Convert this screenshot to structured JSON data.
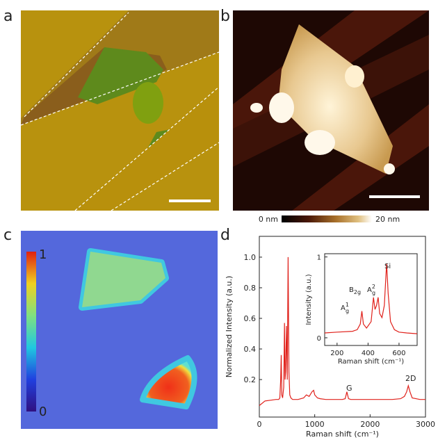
{
  "panel_labels": [
    "a",
    "b",
    "c",
    "d"
  ],
  "afm_colorbar": {
    "min_label": "0 nm",
    "max_label": "20 nm"
  },
  "map_colorbar": {
    "max_label": "1",
    "min_label": "0"
  },
  "chart_data": [
    {
      "type": "line",
      "xlabel": "Raman shift (cm⁻¹)",
      "ylabel": "Normalized Intensity (a.u.)",
      "xlim": [
        0,
        3000
      ],
      "xticks": [
        0,
        1000,
        2000,
        3000
      ],
      "ylim": [
        -0.045,
        1.136
      ],
      "yticks": [
        0.2,
        0.4,
        0.6,
        0.8,
        {
          "value": 1,
          "label": "1.0"
        }
      ],
      "annotations": [
        "G",
        "2D"
      ],
      "series": [
        {
          "color": "#e0201a",
          "x": [
            0,
            100,
            200,
            300,
            350,
            370,
            385,
            395,
            405,
            420,
            440,
            455,
            465,
            475,
            490,
            505,
            520,
            535,
            550,
            570,
            600,
            700,
            800,
            850,
            900,
            950,
            980,
            1000,
            1050,
            1100,
            1200,
            1300,
            1400,
            1500,
            1550,
            1580,
            1610,
            1650,
            1800,
            2000,
            2200,
            2400,
            2550,
            2620,
            2660,
            2690,
            2720,
            2760,
            2900,
            3000
          ],
          "values": [
            0.03,
            0.06,
            0.065,
            0.07,
            0.07,
            0.08,
            0.2,
            0.36,
            0.1,
            0.08,
            0.15,
            0.57,
            0.2,
            0.25,
            0.55,
            0.2,
            1.0,
            0.25,
            0.1,
            0.08,
            0.07,
            0.07,
            0.08,
            0.1,
            0.09,
            0.12,
            0.13,
            0.1,
            0.08,
            0.075,
            0.07,
            0.07,
            0.07,
            0.07,
            0.075,
            0.12,
            0.075,
            0.07,
            0.07,
            0.07,
            0.07,
            0.07,
            0.075,
            0.09,
            0.12,
            0.16,
            0.12,
            0.08,
            0.07,
            0.07
          ]
        }
      ]
    },
    {
      "type": "line",
      "xlabel": "Raman shift (cm⁻¹)",
      "ylabel": "Intensity (a.u.)",
      "xlim": [
        120,
        717
      ],
      "xticks": [
        200,
        400,
        600
      ],
      "ylim": [
        -0.095,
        1.04
      ],
      "yticks": [
        0,
        1
      ],
      "annotations": [
        {
          "base": "A",
          "sup": "1",
          "sub": "g"
        },
        {
          "base": "B",
          "sub": "2g"
        },
        {
          "base": "A",
          "sup": "2",
          "sub": "g"
        },
        {
          "base": "Si"
        }
      ],
      "series": [
        {
          "color": "#e0201a",
          "x": [
            120,
            200,
            300,
            330,
            350,
            360,
            370,
            390,
            420,
            435,
            445,
            455,
            465,
            475,
            490,
            505,
            515,
            520,
            530,
            545,
            570,
            600,
            650,
            717
          ],
          "values": [
            0.06,
            0.07,
            0.08,
            0.1,
            0.17,
            0.33,
            0.17,
            0.12,
            0.2,
            0.5,
            0.35,
            0.4,
            0.5,
            0.3,
            0.25,
            0.4,
            0.75,
            0.92,
            0.55,
            0.2,
            0.1,
            0.07,
            0.06,
            0.05
          ]
        }
      ]
    }
  ]
}
